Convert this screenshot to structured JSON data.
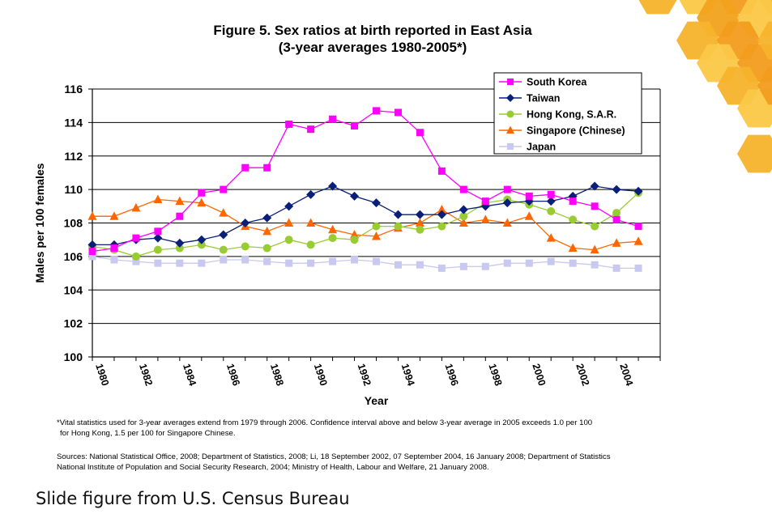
{
  "slide": {
    "caption": "Slide figure from U.S. Census Bureau",
    "decoration": "orange-honeycomb-hexagons"
  },
  "chart_data": {
    "type": "line",
    "title": "Figure 5.  Sex ratios at birth reported in East Asia",
    "subtitle": "(3-year averages 1980-2005*)",
    "xlabel": "Year",
    "ylabel": "Males per 100 females",
    "ylim": [
      100,
      116
    ],
    "yticks": [
      100,
      102,
      104,
      106,
      108,
      110,
      112,
      114,
      116
    ],
    "xlim": [
      1980,
      2006
    ],
    "xtick_labels": [
      "1980",
      "1982",
      "1984",
      "1986",
      "1988",
      "1990",
      "1992",
      "1994",
      "1996",
      "1998",
      "2000",
      "2002",
      "2004"
    ],
    "grid": "horizontal",
    "legend_position": "top-right",
    "x": [
      1980,
      1981,
      1982,
      1983,
      1984,
      1985,
      1986,
      1987,
      1988,
      1989,
      1990,
      1991,
      1992,
      1993,
      1994,
      1995,
      1996,
      1997,
      1998,
      1999,
      2000,
      2001,
      2002,
      2003,
      2004,
      2005
    ],
    "series": [
      {
        "name": "South Korea",
        "color": "#ff00ff",
        "marker": "square",
        "values": [
          106.3,
          106.5,
          107.1,
          107.5,
          108.4,
          109.8,
          110.0,
          111.3,
          111.3,
          113.9,
          113.6,
          114.2,
          113.8,
          114.7,
          114.6,
          113.4,
          111.1,
          110.0,
          109.3,
          110.0,
          109.6,
          109.7,
          109.3,
          109.0,
          108.2,
          107.8
        ]
      },
      {
        "name": "Taiwan",
        "color": "#0a1f7a",
        "marker": "diamond",
        "values": [
          106.7,
          106.7,
          107.0,
          107.1,
          106.8,
          107.0,
          107.3,
          108.0,
          108.3,
          109.0,
          109.7,
          110.2,
          109.6,
          109.2,
          108.5,
          108.5,
          108.5,
          108.8,
          109.0,
          109.2,
          109.3,
          109.3,
          109.6,
          110.2,
          110.0,
          109.9
        ]
      },
      {
        "name": "Hong Kong, S.A.R.",
        "color": "#99cc33",
        "marker": "circle",
        "values": [
          106.6,
          106.4,
          106.0,
          106.4,
          106.5,
          106.7,
          106.4,
          106.6,
          106.5,
          107.0,
          106.7,
          107.1,
          107.0,
          107.8,
          107.8,
          107.6,
          107.8,
          108.4,
          109.2,
          109.4,
          109.1,
          108.7,
          108.2,
          107.8,
          108.6,
          109.8
        ]
      },
      {
        "name": "Singapore (Chinese)",
        "color": "#ff6600",
        "marker": "triangle",
        "values": [
          108.4,
          108.4,
          108.9,
          109.4,
          109.3,
          109.2,
          108.6,
          107.8,
          107.5,
          108.0,
          108.0,
          107.6,
          107.3,
          107.2,
          107.7,
          108.0,
          108.8,
          108.0,
          108.2,
          108.0,
          108.4,
          107.1,
          106.5,
          106.4,
          106.8,
          106.9
        ]
      },
      {
        "name": "Japan",
        "color": "#c8c8f0",
        "marker": "square",
        "values": [
          106.0,
          105.8,
          105.7,
          105.6,
          105.6,
          105.6,
          105.8,
          105.8,
          105.7,
          105.6,
          105.6,
          105.7,
          105.8,
          105.7,
          105.5,
          105.5,
          105.3,
          105.4,
          105.4,
          105.6,
          105.6,
          105.7,
          105.6,
          105.5,
          105.3,
          105.3
        ]
      }
    ]
  },
  "notes": {
    "footnote_line1": "*Vital statistics used for 3-year averages extend from 1979 through 2006.  Confidence interval above and below 3-year average in 2005 exceeds 1.0 per 100",
    "footnote_line2": "for Hong Kong, 1.5 per 100 for Singapore Chinese.",
    "sources_line1": "Sources:  National Statistical Office, 2008; Department of Statistics, 2008; Li, 18 September 2002, 07 September 2004, 16 January 2008; Department of Statistics",
    "sources_line2": "National Institute of Population and Social Security Research, 2004; Ministry of Health, Labour and Welfare, 21 January 2008."
  }
}
